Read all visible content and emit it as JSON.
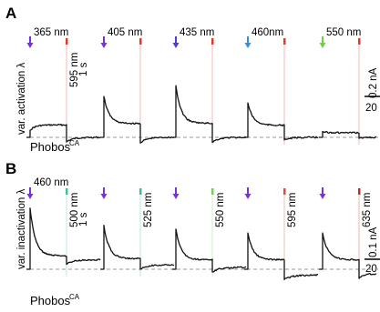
{
  "chart_data": [
    {
      "type": "line",
      "panel": "A",
      "ylabel": "var. activation λ",
      "construct_label": {
        "base": "Phobos",
        "sup": "CA"
      },
      "time_scale_label": "1 s",
      "scale_bar_label": "0.2 nA",
      "x_tick_fragment": "20",
      "events": [
        {
          "activation": "365 nm",
          "activation_color": "#7a2ee6",
          "peak": 0.22,
          "plateau": 0.38,
          "deactivation": "595 nm",
          "deactivation_color": "#e03a2a",
          "undershoot": -0.14,
          "deact_label_printed": true
        },
        {
          "activation": "405 nm",
          "activation_color": "#7a2ee6",
          "peak": 1.25,
          "plateau": 0.42,
          "deactivation": "",
          "deactivation_color": "#e03a2a",
          "undershoot": -0.17,
          "deact_label_printed": false
        },
        {
          "activation": "435 nm",
          "activation_color": "#5a35e0",
          "peak": 1.58,
          "plateau": 0.43,
          "deactivation": "",
          "deactivation_color": "#e03a2a",
          "undershoot": -0.15,
          "deact_label_printed": false
        },
        {
          "activation": "460nm",
          "activation_color": "#2f8fe0",
          "peak": 1.05,
          "plateau": 0.37,
          "deactivation": "",
          "deactivation_color": "#e03a2a",
          "undershoot": -0.08,
          "deact_label_printed": false
        },
        {
          "activation": "550 nm",
          "activation_color": "#6cd23a",
          "peak": 0.18,
          "plateau": 0.14,
          "deactivation": "",
          "deactivation_color": "#e03a2a",
          "undershoot": -0.03,
          "deact_label_printed": false
        }
      ]
    },
    {
      "type": "line",
      "panel": "B",
      "ylabel": "var. inactivation λ",
      "construct_label": {
        "base": "Phobos",
        "sup": "CA"
      },
      "time_scale_label": "1 s",
      "scale_bar_label": "0.1 nA",
      "x_tick_fragment": "20",
      "events": [
        {
          "activation": "460 nm",
          "activation_color": "#7a2ee6",
          "peak": 1.6,
          "plateau": 0.35,
          "deactivation": "500 nm",
          "deactivation_color": "#3fbfa0",
          "undershoot_end": 0.25,
          "deact_label_printed": true
        },
        {
          "activation": "",
          "activation_color": "#7a2ee6",
          "peak": 1.15,
          "plateau": 0.28,
          "deactivation": "525 nm",
          "deactivation_color": "#3cc28a",
          "undershoot_end": 0.12,
          "deact_label_printed": true
        },
        {
          "activation": "",
          "activation_color": "#7a2ee6",
          "peak": 1.05,
          "plateau": 0.25,
          "deactivation": "550 nm",
          "deactivation_color": "#77d052",
          "undershoot_end": 0.05,
          "deact_label_printed": true
        },
        {
          "activation": "",
          "activation_color": "#7a2ee6",
          "peak": 0.95,
          "plateau": 0.25,
          "deactivation": "595 nm",
          "deactivation_color": "#e34a3c",
          "undershoot_end": -0.15,
          "deact_label_printed": true
        },
        {
          "activation": "",
          "activation_color": "#7a2ee6",
          "peak": 0.95,
          "plateau": 0.25,
          "deactivation": "635 nm",
          "deactivation_color": "#cc2a20",
          "undershoot_end": -0.12,
          "deact_label_printed": true
        }
      ]
    }
  ],
  "colors": {
    "trace": "#111111",
    "baseline": "#999999",
    "deact_line_A": "#f4b7b1"
  }
}
